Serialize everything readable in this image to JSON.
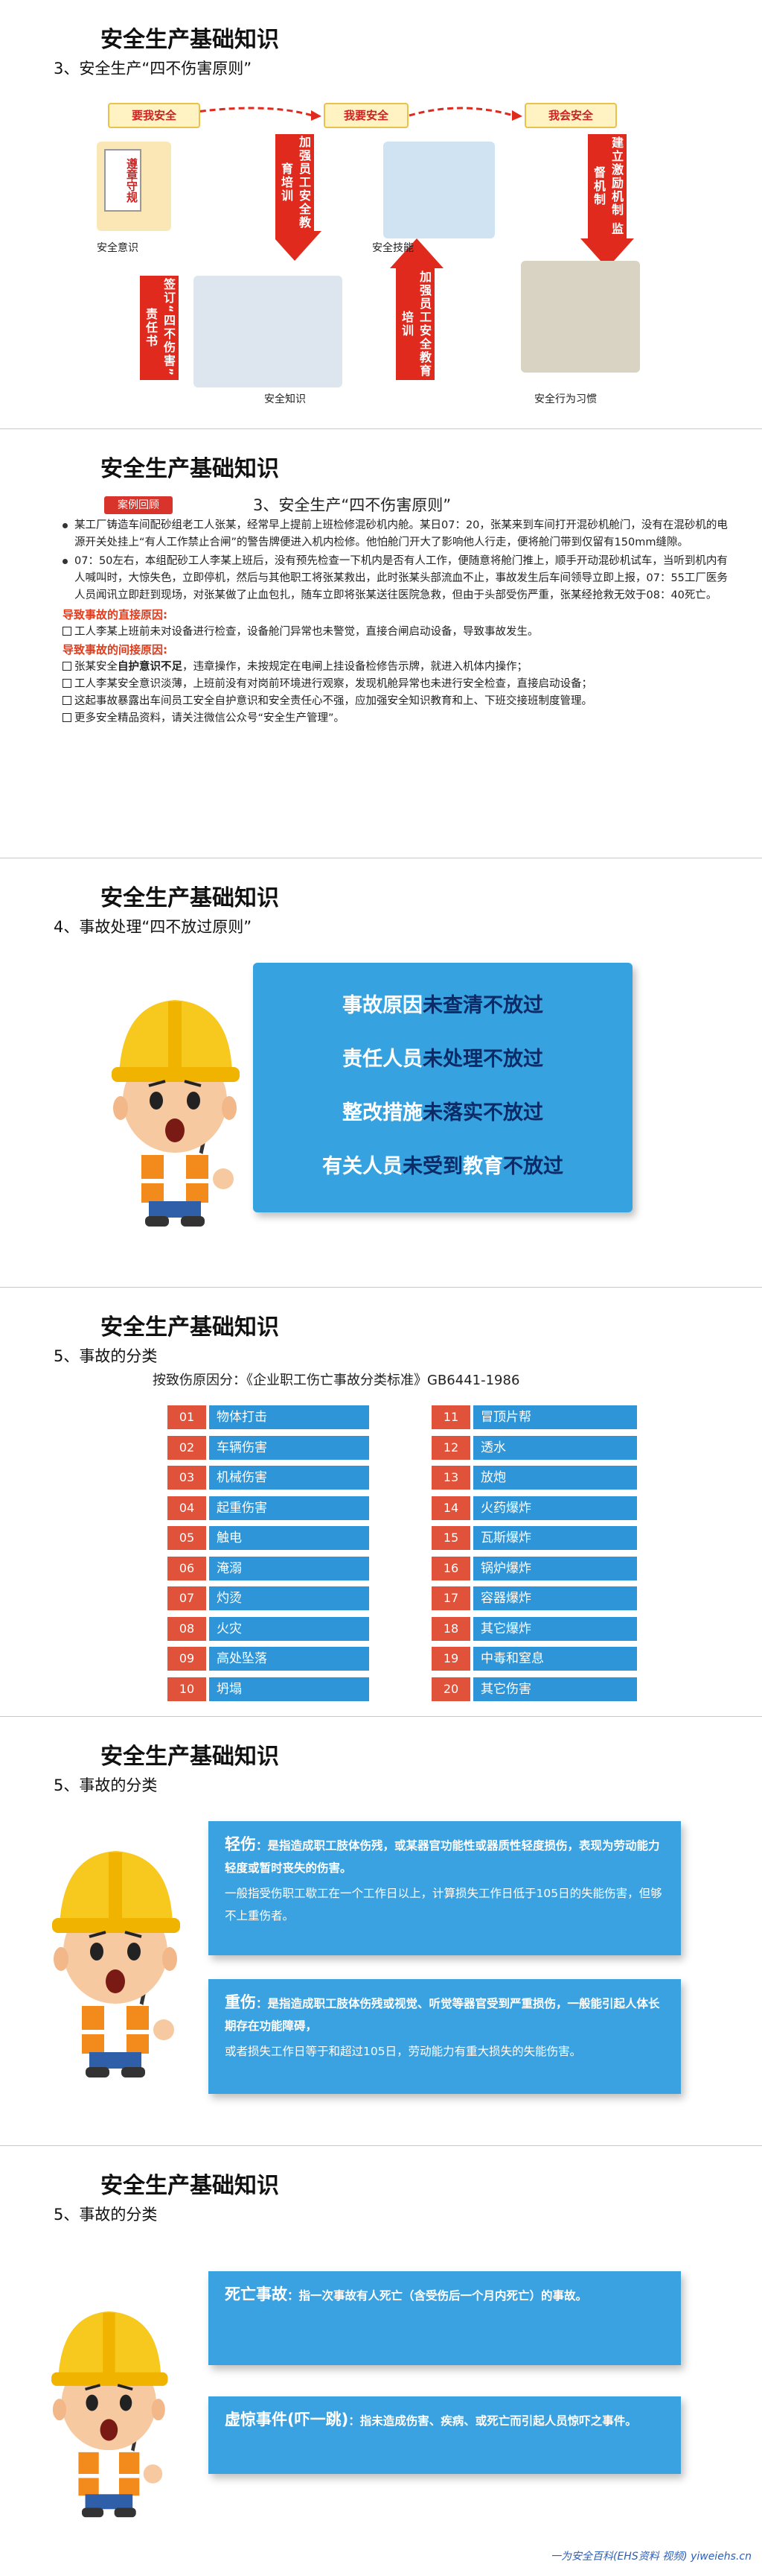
{
  "slide1": {
    "title": "安全生产基础知识",
    "subtitle": "3、安全生产“四不伤害原则”",
    "stages": [
      "要我安全",
      "我要安全",
      "我会安全"
    ],
    "arrows": [
      "加强员工安全教育培训",
      "建立激励机制 监督机制",
      "签订“四不伤害”责任书",
      "加强员工安全教育培训"
    ],
    "captions": [
      "安全意识",
      "安全技能",
      "安全知识",
      "安全行为习惯"
    ],
    "sign": "遵章守规"
  },
  "slide2": {
    "title": "安全生产基础知识",
    "tag": "案例回顾",
    "heading": "3、安全生产“四不伤害原则”",
    "paragraphs": [
      "某工厂铸造车间配砂组老工人张某，经常早上提前上班检修混砂机内舱。某日07：20，张某来到车间打开混砂机舱门，没有在混砂机的电源开关处挂上“有人工作禁止合闸”的警告牌便进入机内检修。他怕舱门开大了影响他人行走，便将舱门带到仅留有150mm缝隙。",
      "07：50左右，本组配砂工人李某上班后，没有预先检查一下机内是否有人工作，便随意将舱门推上，顺手开动混砂机试车，当听到机内有人喊叫时，大惊失色，立即停机，然后与其他职工将张某救出，此时张某头部流血不止，事故发生后车间领导立即上报，07：55工厂医务人员闻讯立即赶到现场，对张某做了止血包扎，随车立即将张某送往医院急救，但由于头部受伤严重，张某经抢救无效于08：40死亡。"
    ],
    "direct_heading": "导致事故的直接原因:",
    "direct": [
      [
        "工人李某上班前未对设备进行检查，设备舱门异常也未警觉，直接合闸启动设备，导致事故发生。"
      ]
    ],
    "indirect_heading": "导致事故的间接原因:",
    "indirect": [
      [
        "张某安全",
        "自护意识不足",
        "，违章操作，未按规定在电闸上挂设备检修告示牌，就进入机体内操作；"
      ],
      [
        "工人李某安全意识淡薄，上班前没有对岗前环境进行观察，发现机舱异常也未进行安全检查，直接启动设备；"
      ],
      [
        "这起事故暴露出车间员工安全自护意识和安全责任心不强，应加强安全知识教育和上、下班交接班制度管理。"
      ],
      [
        "更多安全精品资料，请关注微信公众号“安全生产管理”。"
      ]
    ]
  },
  "slide3": {
    "title": "安全生产基础知识",
    "subtitle": "4、事故处理“四不放过原则”",
    "rules": [
      [
        "事故原因",
        "未查清不放过"
      ],
      [
        "责任人员",
        "未处理不放过"
      ],
      [
        "整改措施",
        "未落实不放过"
      ],
      [
        "有关人员",
        "未受到",
        "教育",
        "不放过"
      ]
    ]
  },
  "slide4": {
    "title": "安全生产基础知识",
    "subtitle": "5、事故的分类",
    "standard": "按致伤原因分：《企业职工伤亡事故分类标准》GB6441-1986",
    "items": [
      {
        "no": "01",
        "name": "物体打击"
      },
      {
        "no": "02",
        "name": "车辆伤害"
      },
      {
        "no": "03",
        "name": "机械伤害"
      },
      {
        "no": "04",
        "name": "起重伤害"
      },
      {
        "no": "05",
        "name": "触电"
      },
      {
        "no": "06",
        "name": "淹溺"
      },
      {
        "no": "07",
        "name": "灼烫"
      },
      {
        "no": "08",
        "name": "火灾"
      },
      {
        "no": "09",
        "name": "高处坠落"
      },
      {
        "no": "10",
        "name": "坍塌"
      },
      {
        "no": "11",
        "name": "冒顶片帮"
      },
      {
        "no": "12",
        "name": "透水"
      },
      {
        "no": "13",
        "name": "放炮"
      },
      {
        "no": "14",
        "name": "火药爆炸"
      },
      {
        "no": "15",
        "name": "瓦斯爆炸"
      },
      {
        "no": "16",
        "name": "锅炉爆炸"
      },
      {
        "no": "17",
        "name": "容器爆炸"
      },
      {
        "no": "18",
        "name": "其它爆炸"
      },
      {
        "no": "19",
        "name": "中毒和窒息"
      },
      {
        "no": "20",
        "name": "其它伤害"
      }
    ]
  },
  "slide5": {
    "title": "安全生产基础知识",
    "subtitle": "5、事故的分类",
    "boxes": [
      {
        "term": "轻伤",
        "text": [
          "：是指造成职工肢体伤残，或某器官功能性或器质性轻度损伤，表现为劳动能力轻度或暂时丧失的伤害。",
          "一般指受伤职工歇工在一个工作日以上，计算损失工作日低于105日的失能伤害，但够不上重伤者。"
        ]
      },
      {
        "term": "重伤",
        "text": [
          "：是指造成职工肢体伤残或视觉、听觉等器官受到严重损伤，一般能引起人体长期存在功能障碍，",
          "或者损失工作日等于和超过105日，劳动能力有重大损失的失能伤害。"
        ]
      }
    ]
  },
  "slide6": {
    "title": "安全生产基础知识",
    "subtitle": "5、事故的分类",
    "boxes": [
      {
        "term": "死亡事故",
        "text": [
          "：指一次事故有人死亡（含受伤后一个月内死亡）的事故。"
        ]
      },
      {
        "term": "虚惊事件(吓一跳)",
        "text": [
          "：指未造成伤害、疾病、或死亡而引起人员惊吓之事件。"
        ]
      }
    ],
    "footer": "一为安全百科(EHS资料 视频) yiweiehs.cn"
  }
}
